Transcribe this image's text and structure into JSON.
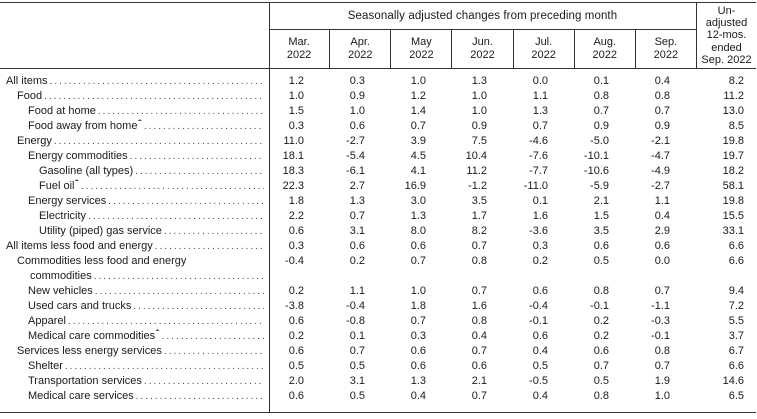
{
  "page": {
    "background": "#ffffff",
    "text_color": "#1a1a1a",
    "rule_color": "#333333"
  },
  "table": {
    "group_header": "Seasonally adjusted changes from preceding month",
    "month_columns": [
      {
        "line1": "Mar.",
        "line2": "2022"
      },
      {
        "line1": "Apr.",
        "line2": "2022"
      },
      {
        "line1": "May",
        "line2": "2022"
      },
      {
        "line1": "Jun.",
        "line2": "2022"
      },
      {
        "line1": "Jul.",
        "line2": "2022"
      },
      {
        "line1": "Aug.",
        "line2": "2022"
      },
      {
        "line1": "Sep.",
        "line2": "2022"
      }
    ],
    "unadjusted_header_lines": [
      "Un-",
      "adjusted",
      "12-mos.",
      "ended",
      "Sep. 2022"
    ],
    "rows": [
      {
        "label": "All items",
        "indent": 0,
        "values": [
          "1.2",
          "0.3",
          "1.0",
          "1.3",
          "0.0",
          "0.1",
          "0.4",
          "8.2"
        ]
      },
      {
        "label": "Food",
        "indent": 1,
        "values": [
          "1.0",
          "0.9",
          "1.2",
          "1.0",
          "1.1",
          "0.8",
          "0.8",
          "11.2"
        ]
      },
      {
        "label": "Food at home",
        "indent": 2,
        "values": [
          "1.5",
          "1.0",
          "1.4",
          "1.0",
          "1.3",
          "0.7",
          "0.7",
          "13.0"
        ]
      },
      {
        "label": "Food away from home",
        "footnote": "1",
        "indent": 2,
        "values": [
          "0.3",
          "0.6",
          "0.7",
          "0.9",
          "0.7",
          "0.9",
          "0.9",
          "8.5"
        ]
      },
      {
        "label": "Energy",
        "indent": 1,
        "values": [
          "11.0",
          "-2.7",
          "3.9",
          "7.5",
          "-4.6",
          "-5.0",
          "-2.1",
          "19.8"
        ]
      },
      {
        "label": "Energy commodities",
        "indent": 2,
        "values": [
          "18.1",
          "-5.4",
          "4.5",
          "10.4",
          "-7.6",
          "-10.1",
          "-4.7",
          "19.7"
        ]
      },
      {
        "label": "Gasoline (all types)",
        "indent": 3,
        "values": [
          "18.3",
          "-6.1",
          "4.1",
          "11.2",
          "-7.7",
          "-10.6",
          "-4.9",
          "18.2"
        ]
      },
      {
        "label": "Fuel oil",
        "footnote": "1",
        "indent": 3,
        "values": [
          "22.3",
          "2.7",
          "16.9",
          "-1.2",
          "-11.0",
          "-5.9",
          "-2.7",
          "58.1"
        ]
      },
      {
        "label": "Energy services",
        "indent": 2,
        "values": [
          "1.8",
          "1.3",
          "3.0",
          "3.5",
          "0.1",
          "2.1",
          "1.1",
          "19.8"
        ]
      },
      {
        "label": "Electricity",
        "indent": 3,
        "values": [
          "2.2",
          "0.7",
          "1.3",
          "1.7",
          "1.6",
          "1.5",
          "0.4",
          "15.5"
        ]
      },
      {
        "label": "Utility (piped) gas service",
        "indent": 3,
        "values": [
          "0.6",
          "3.1",
          "8.0",
          "8.2",
          "-3.6",
          "3.5",
          "2.9",
          "33.1"
        ]
      },
      {
        "label": "All items less food and energy",
        "indent": 0,
        "values": [
          "0.3",
          "0.6",
          "0.6",
          "0.7",
          "0.3",
          "0.6",
          "0.6",
          "6.6"
        ]
      },
      {
        "label": "Commodities less food and energy",
        "label2": "commodities",
        "indent": 1,
        "values": [
          "-0.4",
          "0.2",
          "0.7",
          "0.8",
          "0.2",
          "0.5",
          "0.0",
          "6.6"
        ]
      },
      {
        "label": "New vehicles",
        "indent": 2,
        "values": [
          "0.2",
          "1.1",
          "1.0",
          "0.7",
          "0.6",
          "0.8",
          "0.7",
          "9.4"
        ]
      },
      {
        "label": "Used cars and trucks",
        "indent": 2,
        "values": [
          "-3.8",
          "-0.4",
          "1.8",
          "1.6",
          "-0.4",
          "-0.1",
          "-1.1",
          "7.2"
        ]
      },
      {
        "label": "Apparel",
        "indent": 2,
        "values": [
          "0.6",
          "-0.8",
          "0.7",
          "0.8",
          "-0.1",
          "0.2",
          "-0.3",
          "5.5"
        ]
      },
      {
        "label": "Medical care commodities",
        "footnote": "1",
        "indent": 2,
        "values": [
          "0.2",
          "0.1",
          "0.3",
          "0.4",
          "0.6",
          "0.2",
          "-0.1",
          "3.7"
        ]
      },
      {
        "label": "Services less energy services",
        "indent": 1,
        "values": [
          "0.6",
          "0.7",
          "0.6",
          "0.7",
          "0.4",
          "0.6",
          "0.8",
          "6.7"
        ]
      },
      {
        "label": "Shelter",
        "indent": 2,
        "values": [
          "0.5",
          "0.5",
          "0.6",
          "0.6",
          "0.5",
          "0.7",
          "0.7",
          "6.6"
        ]
      },
      {
        "label": "Transportation services",
        "indent": 2,
        "values": [
          "2.0",
          "3.1",
          "1.3",
          "2.1",
          "-0.5",
          "0.5",
          "1.9",
          "14.6"
        ]
      },
      {
        "label": "Medical care services",
        "indent": 2,
        "values": [
          "0.6",
          "0.5",
          "0.4",
          "0.7",
          "0.4",
          "0.8",
          "1.0",
          "6.5"
        ]
      }
    ]
  }
}
